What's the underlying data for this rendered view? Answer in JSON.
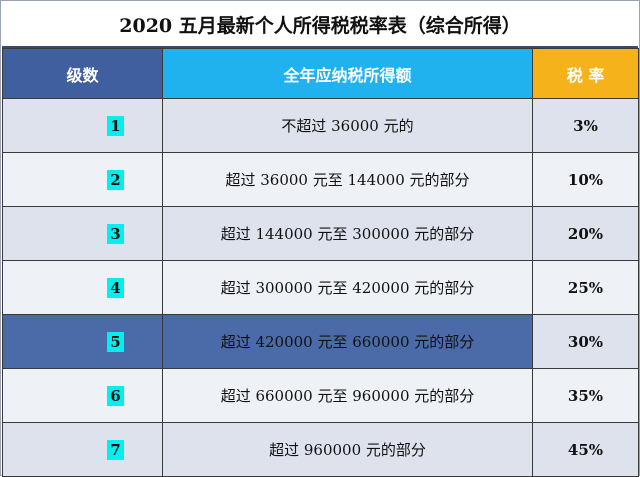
{
  "title": "2020 五月最新个人所得税税率表（综合所得）",
  "headers": {
    "level": "级数",
    "range": "全年应纳税所得额",
    "rate": "税 率"
  },
  "rows": [
    {
      "level": "1",
      "range": "不超过 36000 元的",
      "rate": "3%"
    },
    {
      "level": "2",
      "range": "超过 36000 元至 144000 元的部分",
      "rate": "10%"
    },
    {
      "level": "3",
      "range": "超过 144000 元至 300000 元的部分",
      "rate": "20%"
    },
    {
      "level": "4",
      "range": "超过 300000 元至 420000 元的部分",
      "rate": "25%"
    },
    {
      "level": "5",
      "range": "超过 420000 元至 660000 元的部分",
      "rate": "30%"
    },
    {
      "level": "6",
      "range": "超过 660000 元至 960000 元的部分",
      "rate": "35%"
    },
    {
      "level": "7",
      "range": "超过 960000 元的部分",
      "rate": "45%"
    }
  ],
  "colors": {
    "header_level": "#3f5f9e",
    "header_range": "#1fb2ee",
    "header_rate": "#f6b21a",
    "level_highlight": "#00f0f0",
    "row_highlight": "#4a6aa8"
  }
}
